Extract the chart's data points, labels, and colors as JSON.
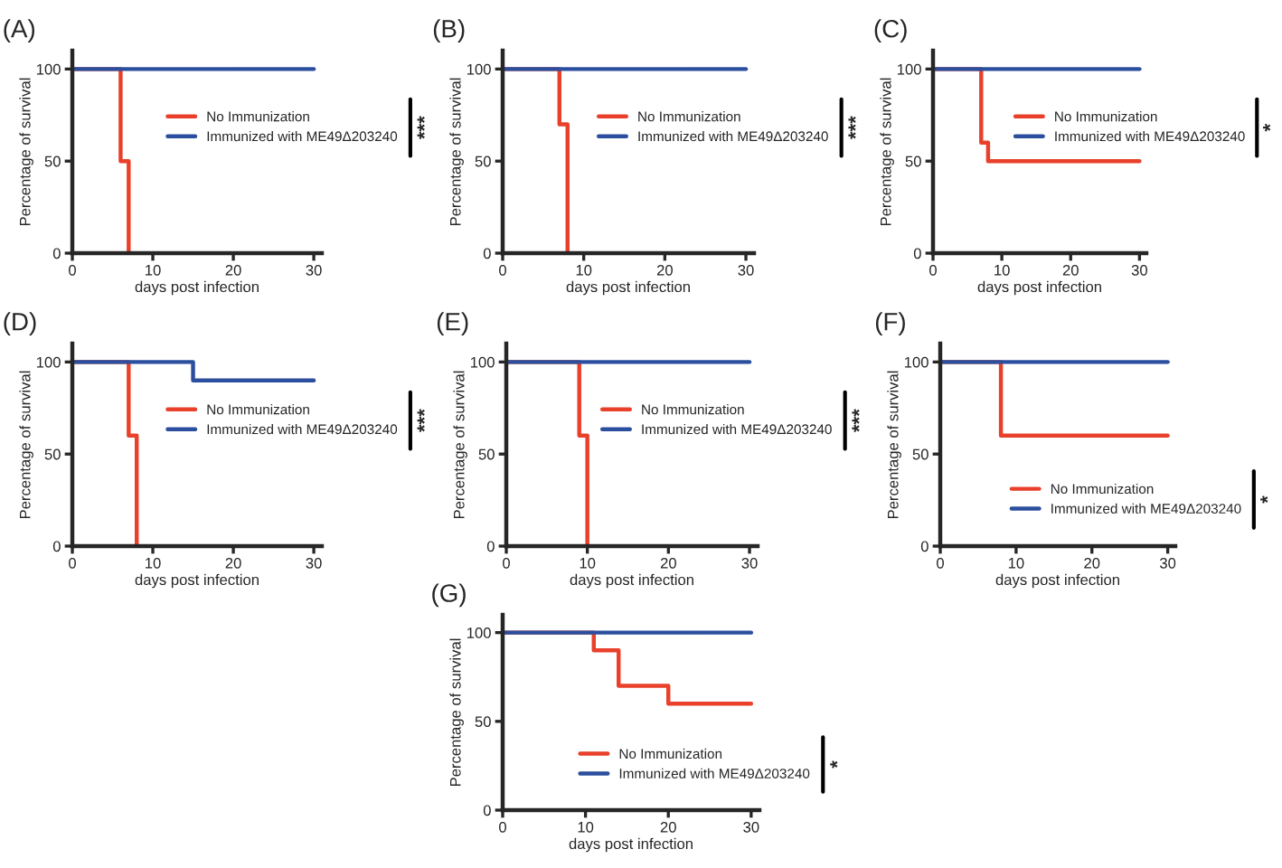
{
  "chart_data": [
    {
      "type": "step",
      "title": "(A)",
      "xlabel": "days post infection",
      "ylabel": "Percentage of survival",
      "xlim": [
        0,
        31
      ],
      "ylim": [
        0,
        110
      ],
      "xticks": [
        0,
        10,
        20,
        30
      ],
      "yticks": [
        0,
        50,
        100
      ],
      "legend": "center right",
      "annotations": [
        "***"
      ],
      "series": [
        {
          "name": "No Immunization",
          "color": "#e8402a",
          "x": [
            0,
            6,
            7
          ],
          "values": [
            100,
            50,
            0
          ]
        },
        {
          "name": "Immunized with ME49Δ203240",
          "color": "#2b4f9e",
          "x": [
            0,
            30
          ],
          "values": [
            100,
            100
          ]
        }
      ]
    },
    {
      "type": "step",
      "title": "(B)",
      "xlabel": "days post infection",
      "ylabel": "Percentage of survival",
      "xlim": [
        0,
        31
      ],
      "ylim": [
        0,
        110
      ],
      "xticks": [
        0,
        10,
        20,
        30
      ],
      "yticks": [
        0,
        50,
        100
      ],
      "legend": "center right",
      "annotations": [
        "***"
      ],
      "series": [
        {
          "name": "No Immunization",
          "color": "#e8402a",
          "x": [
            0,
            7,
            8
          ],
          "values": [
            100,
            70,
            0
          ]
        },
        {
          "name": "Immunized with ME49Δ203240",
          "color": "#2b4f9e",
          "x": [
            0,
            30
          ],
          "values": [
            100,
            100
          ]
        }
      ]
    },
    {
      "type": "step",
      "title": "(C)",
      "xlabel": "days post infection",
      "ylabel": "Percentage of survival",
      "xlim": [
        0,
        31
      ],
      "ylim": [
        0,
        110
      ],
      "xticks": [
        0,
        10,
        20,
        30
      ],
      "yticks": [
        0,
        50,
        100
      ],
      "legend": "center right",
      "annotations": [
        "*"
      ],
      "series": [
        {
          "name": "No Immunization",
          "color": "#e8402a",
          "x": [
            0,
            7,
            8,
            30
          ],
          "values": [
            100,
            60,
            50,
            50
          ]
        },
        {
          "name": "Immunized with ME49Δ203240",
          "color": "#2b4f9e",
          "x": [
            0,
            30
          ],
          "values": [
            100,
            100
          ]
        }
      ]
    },
    {
      "type": "step",
      "title": "(D)",
      "xlabel": "days post infection",
      "ylabel": "Percentage of survival",
      "xlim": [
        0,
        31
      ],
      "ylim": [
        0,
        110
      ],
      "xticks": [
        0,
        10,
        20,
        30
      ],
      "yticks": [
        0,
        50,
        100
      ],
      "legend": "center right",
      "annotations": [
        "***"
      ],
      "series": [
        {
          "name": "No Immunization",
          "color": "#e8402a",
          "x": [
            0,
            7,
            8
          ],
          "values": [
            100,
            60,
            0
          ]
        },
        {
          "name": "Immunized with ME49Δ203240",
          "color": "#2b4f9e",
          "x": [
            0,
            15,
            30
          ],
          "values": [
            100,
            90,
            90
          ]
        }
      ]
    },
    {
      "type": "step",
      "title": "(E)",
      "xlabel": "days post infection",
      "ylabel": "Percentage of survival",
      "xlim": [
        0,
        31
      ],
      "ylim": [
        0,
        110
      ],
      "xticks": [
        0,
        10,
        20,
        30
      ],
      "yticks": [
        0,
        50,
        100
      ],
      "legend": "center right",
      "annotations": [
        "***"
      ],
      "series": [
        {
          "name": "No Immunization",
          "color": "#e8402a",
          "x": [
            0,
            9,
            10
          ],
          "values": [
            100,
            60,
            0
          ]
        },
        {
          "name": "Immunized with ME49Δ203240",
          "color": "#2b4f9e",
          "x": [
            0,
            30
          ],
          "values": [
            100,
            100
          ]
        }
      ]
    },
    {
      "type": "step",
      "title": "(F)",
      "xlabel": "days post infection",
      "ylabel": "Percentage of survival",
      "xlim": [
        0,
        31
      ],
      "ylim": [
        0,
        110
      ],
      "xticks": [
        0,
        10,
        20,
        30
      ],
      "yticks": [
        0,
        50,
        100
      ],
      "legend": "lower right",
      "annotations": [
        "*"
      ],
      "series": [
        {
          "name": "No Immunization",
          "color": "#e8402a",
          "x": [
            0,
            8,
            30
          ],
          "values": [
            100,
            60,
            60
          ]
        },
        {
          "name": "Immunized with ME49Δ203240",
          "color": "#2b4f9e",
          "x": [
            0,
            30
          ],
          "values": [
            100,
            100
          ]
        }
      ]
    },
    {
      "type": "step",
      "title": "(G)",
      "xlabel": "days post infection",
      "ylabel": "Percentage of survival",
      "xlim": [
        0,
        31
      ],
      "ylim": [
        0,
        110
      ],
      "xticks": [
        0,
        10,
        20,
        30
      ],
      "yticks": [
        0,
        50,
        100
      ],
      "legend": "lower right",
      "annotations": [
        "*"
      ],
      "series": [
        {
          "name": "No Immunization",
          "color": "#e8402a",
          "x": [
            0,
            11,
            14,
            20,
            30
          ],
          "values": [
            100,
            90,
            70,
            60,
            60
          ]
        },
        {
          "name": "Immunized with ME49Δ203240",
          "color": "#2b4f9e",
          "x": [
            0,
            30
          ],
          "values": [
            100,
            100
          ]
        }
      ]
    }
  ]
}
